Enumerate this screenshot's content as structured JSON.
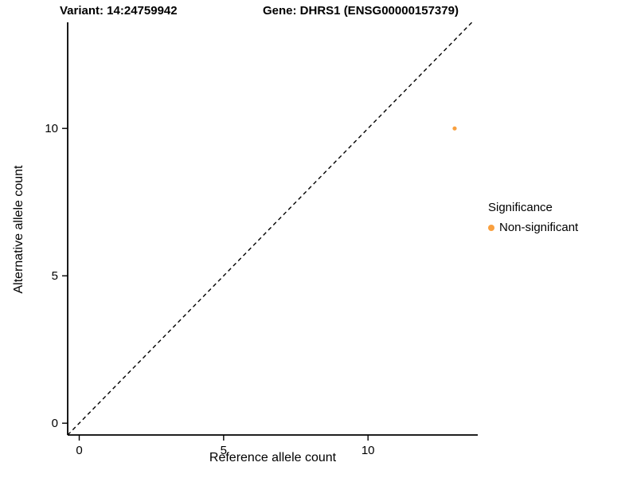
{
  "chart_data": {
    "type": "scatter",
    "title_left": "Variant: 14:24759942",
    "title_right": "Gene: DHRS1 (ENSG00000157379)",
    "xlabel": "Reference allele count",
    "ylabel": "Alternative allele count",
    "xlim": [
      -0.4,
      13.8
    ],
    "ylim": [
      -0.4,
      13.6
    ],
    "xticks": [
      0,
      5,
      10
    ],
    "yticks": [
      0,
      5,
      10
    ],
    "grid": false,
    "identity_line": {
      "style": "dashed",
      "from": -0.4,
      "to": 13.6,
      "color": "#000000"
    },
    "series": [
      {
        "name": "Non-significant",
        "color": "#F9A03F",
        "points": [
          {
            "x": 13,
            "y": 10
          }
        ]
      }
    ],
    "legend": {
      "title": "Significance",
      "position": "right",
      "items": [
        {
          "label": "Non-significant",
          "color": "#F9A03F"
        }
      ]
    }
  }
}
